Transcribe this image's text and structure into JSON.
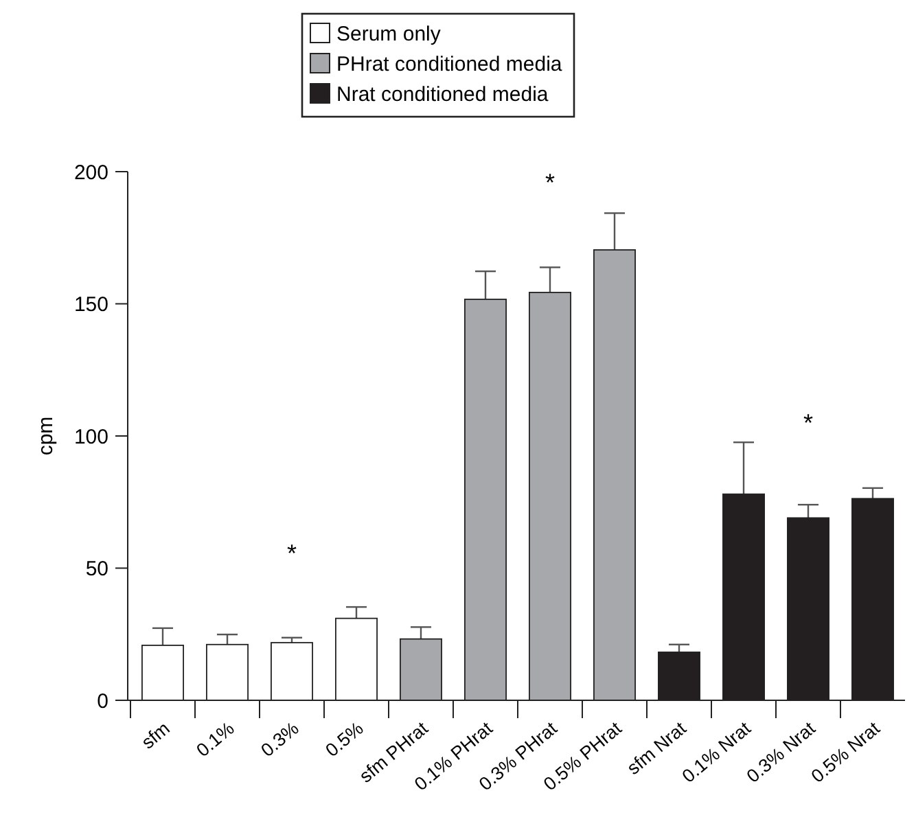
{
  "chart_data": {
    "type": "bar",
    "ylabel": "cpm",
    "categories": [
      "sfm",
      "0.1%",
      "0.3%",
      "0.5%",
      "sfm PHrat",
      "0.1% PHrat",
      "0.3% PHrat",
      "0.5% PHrat",
      "sfm Nrat",
      "0.1% Nrat",
      "0.3% Nrat",
      "0.5% Nrat"
    ],
    "series": [
      {
        "name": "Serum only",
        "color": "#ffffff",
        "values": [
          20.8,
          21.1,
          21.8,
          31,
          null,
          null,
          null,
          null,
          null,
          null,
          null,
          null
        ],
        "errors": [
          [
            20.8,
            27.3
          ],
          [
            21.1,
            24.9
          ],
          [
            21.8,
            23.7
          ],
          [
            31,
            35.3
          ],
          null,
          null,
          null,
          null,
          null,
          null,
          null,
          null
        ]
      },
      {
        "name": "PHrat conditioned media",
        "color": "#a7a8ab",
        "values": [
          null,
          null,
          null,
          null,
          23.2,
          151.7,
          154.3,
          170.4,
          null,
          null,
          null,
          null
        ],
        "errors": [
          null,
          null,
          null,
          null,
          [
            23.2,
            27.7
          ],
          [
            151.7,
            162.3
          ],
          [
            154.3,
            163.8
          ],
          [
            170.4,
            184.3
          ],
          null,
          null,
          null,
          null
        ]
      },
      {
        "name": "Nrat conditioned media",
        "color": "#231f20",
        "values": [
          null,
          null,
          null,
          null,
          null,
          null,
          null,
          null,
          18.2,
          78,
          69,
          76.3
        ],
        "errors": [
          null,
          null,
          null,
          null,
          null,
          null,
          null,
          null,
          [
            18.2,
            21.1
          ],
          [
            78,
            97.6
          ],
          [
            69,
            74
          ],
          [
            76.3,
            80.3
          ]
        ]
      }
    ],
    "ylim": [
      0,
      200
    ],
    "yticks": [
      0,
      50,
      100,
      150,
      200
    ],
    "grid": false,
    "legend": "top",
    "annotations": [
      "*",
      "*",
      "*"
    ]
  }
}
